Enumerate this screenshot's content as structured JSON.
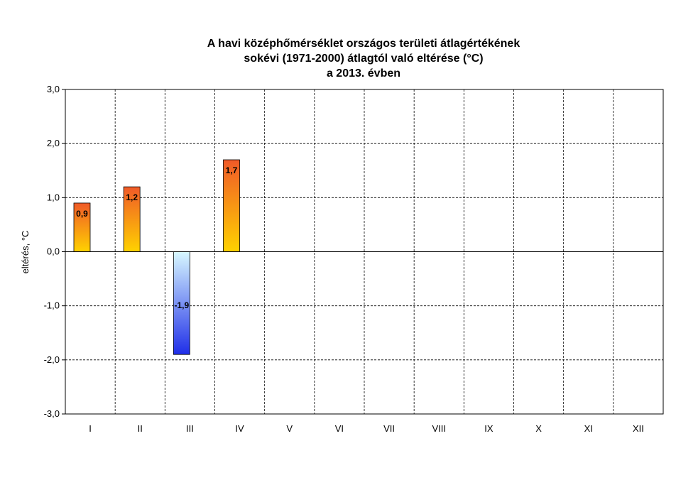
{
  "chart_data": {
    "type": "bar",
    "title_lines": [
      "A havi középhőmérséklet országos területi átlagértékének",
      "sokévi (1971-2000) átlagtól való eltérése (°C)",
      "a 2013. évben"
    ],
    "ylabel": "eltérés, °C",
    "xlabel": "",
    "categories": [
      "I",
      "II",
      "III",
      "IV",
      "V",
      "VI",
      "VII",
      "VIII",
      "IX",
      "X",
      "XI",
      "XII"
    ],
    "values": [
      0.9,
      1.2,
      -1.9,
      1.7,
      null,
      null,
      null,
      null,
      null,
      null,
      null,
      null
    ],
    "data_labels": [
      "0,9",
      "1,2",
      "-1,9",
      "1,7",
      "",
      "",
      "",
      "",
      "",
      "",
      "",
      ""
    ],
    "ylim": [
      -3.0,
      3.0
    ],
    "yticks": [
      3.0,
      2.0,
      1.0,
      0.0,
      -1.0,
      -2.0,
      -3.0
    ],
    "ytick_labels": [
      "3,0",
      "2,0",
      "1,0",
      "0,0",
      "-1,0",
      "-2,0",
      "-3,0"
    ],
    "grid": true,
    "legend": "none",
    "colors": {
      "positive_top": "#f05a28",
      "positive_bottom": "#ffd200",
      "negative_top": "#d8f8ff",
      "negative_bottom": "#1f2ee8",
      "grid": "#000000",
      "bar_outline": "#000000"
    }
  }
}
